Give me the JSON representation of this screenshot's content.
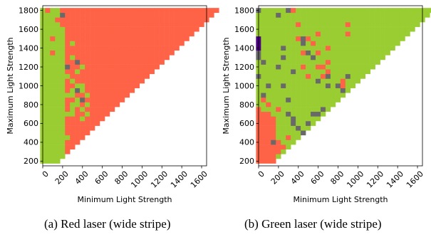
{
  "chart_data": [
    {
      "type": "heatmap",
      "caption": "(a)  Red laser (wide stripe)",
      "xlabel": "Minimum Light Strength",
      "ylabel": "Maximum Light Strength",
      "x_ticks": [
        0,
        200,
        400,
        600,
        800,
        1000,
        1200,
        1400,
        1600
      ],
      "y_ticks": [
        200,
        400,
        600,
        800,
        1000,
        1200,
        1400,
        1600,
        1800
      ],
      "xlim": [
        0,
        1650
      ],
      "ylim": [
        150,
        1850
      ],
      "cell_size": 50,
      "region": "upper triangle (min < max)",
      "colors": {
        "green": "#9acd32",
        "red": "#ff6347",
        "gray": "#696969",
        "purple": "#4b0082"
      },
      "base_rule": {
        "green_if": "min <= 150 or (min <= 200 and max <= 1600)",
        "red_otherwise": true
      },
      "green_extra": [
        [
          250,
          450
        ],
        [
          250,
          700
        ],
        [
          250,
          900
        ],
        [
          250,
          1100
        ],
        [
          300,
          700
        ],
        [
          300,
          750
        ],
        [
          300,
          800
        ],
        [
          300,
          900
        ],
        [
          300,
          950
        ],
        [
          300,
          1050
        ],
        [
          300,
          1300
        ],
        [
          300,
          1450
        ],
        [
          350,
          800
        ],
        [
          350,
          850
        ],
        [
          350,
          950
        ],
        [
          350,
          1000
        ],
        [
          350,
          1050
        ],
        [
          350,
          1150
        ],
        [
          350,
          1250
        ],
        [
          400,
          650
        ],
        [
          400,
          750
        ],
        [
          400,
          950
        ],
        [
          400,
          1000
        ],
        [
          400,
          1200
        ],
        [
          450,
          700
        ],
        [
          450,
          800
        ],
        [
          450,
          900
        ]
      ],
      "red_extra": [
        [
          50,
          1800
        ],
        [
          100,
          1500
        ],
        [
          100,
          1350
        ],
        [
          150,
          1700
        ],
        [
          250,
          500
        ],
        [
          350,
          1050
        ],
        [
          350,
          700
        ],
        [
          450,
          600
        ],
        [
          1350,
          1600
        ]
      ],
      "gray_cells": [
        [
          250,
          1200
        ],
        [
          350,
          1250
        ],
        [
          350,
          950
        ],
        [
          400,
          850
        ],
        [
          200,
          1750
        ]
      ]
    },
    {
      "type": "heatmap",
      "caption": "(b)  Green laser (wide stripe)",
      "xlabel": "Minimum Light Strength",
      "ylabel": "Maximum Light Strength",
      "x_ticks": [
        0,
        200,
        400,
        600,
        800,
        1000,
        1200,
        1400,
        1600
      ],
      "y_ticks": [
        200,
        400,
        600,
        800,
        1000,
        1200,
        1400,
        1600,
        1800
      ],
      "xlim": [
        0,
        1650
      ],
      "ylim": [
        150,
        1850
      ],
      "cell_size": 50,
      "region": "upper triangle (min < max)",
      "colors": {
        "green": "#9acd32",
        "red": "#ff6347",
        "gray": "#696969",
        "purple": "#4b0082"
      },
      "base_rule": {
        "red_if": "max <= 750 and min <= 150",
        "green_otherwise": true
      },
      "red_extra": [
        [
          50,
          850
        ],
        [
          100,
          800
        ],
        [
          200,
          750
        ],
        [
          350,
          1800
        ],
        [
          400,
          1650
        ],
        [
          400,
          1500
        ],
        [
          450,
          1350
        ],
        [
          450,
          1200
        ],
        [
          500,
          1500
        ],
        [
          500,
          1100
        ],
        [
          550,
          1450
        ],
        [
          600,
          1550
        ],
        [
          600,
          1350
        ],
        [
          600,
          1200
        ],
        [
          650,
          1200
        ],
        [
          650,
          1100
        ],
        [
          700,
          1400
        ],
        [
          700,
          1250
        ],
        [
          700,
          1150
        ],
        [
          850,
          1050
        ],
        [
          850,
          1000
        ],
        [
          900,
          1650
        ],
        [
          900,
          1550
        ],
        [
          200,
          400
        ],
        [
          200,
          350
        ],
        [
          200,
          300
        ],
        [
          250,
          350
        ],
        [
          300,
          450
        ]
      ],
      "red_remove": [
        [
          50,
          750
        ],
        [
          100,
          750
        ],
        [
          150,
          700
        ],
        [
          150,
          750
        ]
      ],
      "gray_cells": [
        [
          0,
          1800
        ],
        [
          200,
          1750
        ],
        [
          300,
          1800
        ],
        [
          250,
          1400
        ],
        [
          450,
          1500
        ],
        [
          450,
          1450
        ],
        [
          500,
          1350
        ],
        [
          550,
          1300
        ],
        [
          700,
          1100
        ],
        [
          800,
          1000
        ],
        [
          850,
          950
        ],
        [
          900,
          1100
        ],
        [
          350,
          600
        ],
        [
          350,
          650
        ],
        [
          300,
          700
        ],
        [
          400,
          550
        ],
        [
          450,
          500
        ],
        [
          500,
          600
        ],
        [
          600,
          1050
        ],
        [
          700,
          1000
        ],
        [
          550,
          700
        ],
        [
          300,
          850
        ],
        [
          250,
          1000
        ],
        [
          350,
          1150
        ],
        [
          200,
          1200
        ],
        [
          250,
          1300
        ],
        [
          0,
          1100
        ],
        [
          0,
          1350
        ],
        [
          50,
          900
        ],
        [
          150,
          400
        ],
        [
          0,
          1300
        ],
        [
          50,
          1250
        ],
        [
          600,
          700
        ],
        [
          650,
          750
        ],
        [
          100,
          1000
        ]
      ],
      "purple_cells": [
        [
          0,
          1400
        ],
        [
          0,
          1450
        ],
        [
          0,
          1500
        ]
      ]
    }
  ]
}
